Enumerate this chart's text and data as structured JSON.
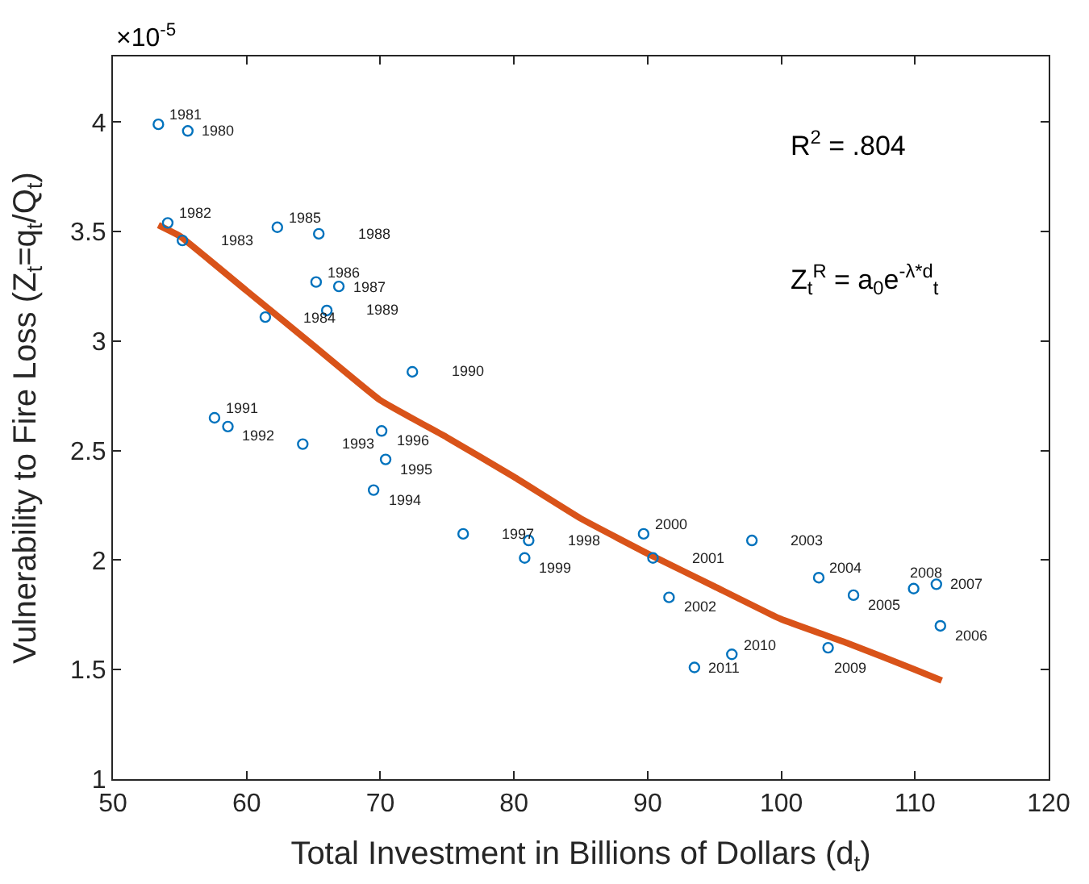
{
  "chart_data": {
    "type": "scatter",
    "xlabel": "Total Investment in Billions of Dollars (d$_{t}$)",
    "ylabel": "Vulnerability to Fire Loss (Z$_{t}$=q$_{t}$/Q$_{t}$)",
    "annotations": [
      "×10$^{-5}$",
      "R$^{2}$ = .804",
      "Z$_{t}$$^{R}$ = a$_{0}$e$^{-λ*d}$$_{t}$",
      {
        "text": "1980",
        "x": 55.6,
        "y": 3.96
      },
      {
        "text": "1981",
        "x": 53.4,
        "y": 3.99
      },
      {
        "text": "1982",
        "x": 54.1,
        "y": 3.54
      },
      {
        "text": "1983",
        "x": 55.2,
        "y": 3.46
      },
      {
        "text": "1984",
        "x": 61.4,
        "y": 3.11
      },
      {
        "text": "1985",
        "x": 62.3,
        "y": 3.52
      },
      {
        "text": "1986",
        "x": 65.2,
        "y": 3.27
      },
      {
        "text": "1987",
        "x": 66.9,
        "y": 3.25
      },
      {
        "text": "1988",
        "x": 65.4,
        "y": 3.49
      },
      {
        "text": "1989",
        "x": 66.0,
        "y": 3.14
      },
      {
        "text": "1990",
        "x": 72.4,
        "y": 2.86
      },
      {
        "text": "1991",
        "x": 57.6,
        "y": 2.65
      },
      {
        "text": "1992",
        "x": 58.6,
        "y": 2.61
      },
      {
        "text": "1993",
        "x": 64.2,
        "y": 2.53
      },
      {
        "text": "1994",
        "x": 69.5,
        "y": 2.32
      },
      {
        "text": "1995",
        "x": 70.4,
        "y": 2.46
      },
      {
        "text": "1996",
        "x": 70.1,
        "y": 2.59
      },
      {
        "text": "1997",
        "x": 76.2,
        "y": 2.12
      },
      {
        "text": "1998",
        "x": 81.1,
        "y": 2.09
      },
      {
        "text": "1999",
        "x": 80.8,
        "y": 2.01
      },
      {
        "text": "2000",
        "x": 89.7,
        "y": 2.12
      },
      {
        "text": "2001",
        "x": 90.4,
        "y": 2.01
      },
      {
        "text": "2002",
        "x": 91.6,
        "y": 1.83
      },
      {
        "text": "2003",
        "x": 97.8,
        "y": 2.09
      },
      {
        "text": "2004",
        "x": 102.8,
        "y": 1.92
      },
      {
        "text": "2005",
        "x": 105.4,
        "y": 1.84
      },
      {
        "text": "2006",
        "x": 111.9,
        "y": 1.7
      },
      {
        "text": "2007",
        "x": 111.6,
        "y": 1.89
      },
      {
        "text": "2008",
        "x": 109.9,
        "y": 1.87
      },
      {
        "text": "2009",
        "x": 103.5,
        "y": 1.6
      },
      {
        "text": "2010",
        "x": 96.3,
        "y": 1.57
      },
      {
        "text": "2011",
        "x": 93.5,
        "y": 1.51
      }
    ],
    "xlim": [
      50,
      120
    ],
    "xticks": [
      50,
      60,
      70,
      80,
      90,
      100,
      110,
      120
    ],
    "ylim": [
      1,
      4.3
    ],
    "yticks": [
      1,
      1.5,
      2,
      2.5,
      3,
      3.5,
      4
    ],
    "series": [
      {
        "type": "scatter",
        "marker": "circle",
        "color": "#0072bd",
        "x": [
          55.6,
          53.4,
          54.1,
          55.2,
          61.4,
          62.3,
          65.2,
          66.9,
          65.4,
          66.0,
          72.4,
          57.6,
          58.6,
          64.2,
          69.5,
          70.4,
          70.1,
          76.2,
          81.1,
          80.8,
          89.7,
          90.4,
          91.6,
          97.8,
          102.8,
          105.4,
          111.9,
          111.6,
          109.9,
          103.5,
          96.3,
          93.5
        ],
        "values": [
          3.96,
          3.99,
          3.54,
          3.46,
          3.11,
          3.52,
          3.27,
          3.25,
          3.49,
          3.14,
          2.86,
          2.65,
          2.61,
          2.53,
          2.32,
          2.46,
          2.59,
          2.12,
          2.09,
          2.01,
          2.12,
          2.01,
          1.83,
          2.09,
          1.92,
          1.84,
          1.7,
          1.89,
          1.87,
          1.6,
          1.57,
          1.51
        ]
      },
      {
        "type": "line",
        "line_style": "solid",
        "color": "#d95319",
        "x": [
          53.4,
          55,
          60,
          65,
          70,
          75,
          80,
          85,
          90,
          95,
          100,
          105,
          110,
          112
        ],
        "values": [
          3.53,
          3.48,
          3.23,
          2.98,
          2.73,
          2.56,
          2.38,
          2.19,
          2.03,
          1.88,
          1.73,
          1.62,
          1.5,
          1.45
        ]
      }
    ]
  }
}
